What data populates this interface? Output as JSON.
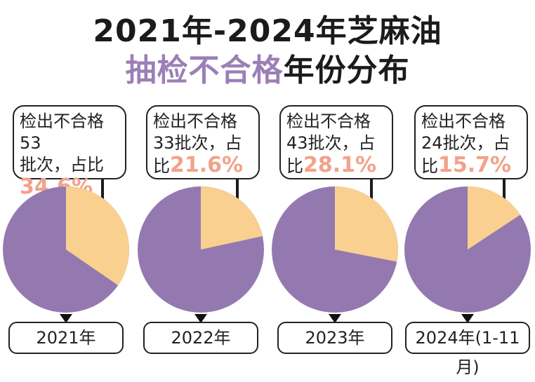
{
  "title": {
    "line1": "2021年-2024年芝麻油",
    "line2_highlight": "抽检不合格",
    "line2_rest": "年份分布"
  },
  "colors": {
    "failed": "#f9d08f",
    "rest": "#9479b0",
    "percent_text": "#f3a18a",
    "title_highlight": "#9b7fb6"
  },
  "chart_data": {
    "type": "pie",
    "categories": [
      "2021年",
      "2022年",
      "2023年",
      "2024年(1-11月)"
    ],
    "series": [
      {
        "year": "2021年",
        "batches": 53,
        "percent": 34.6,
        "text_a": "检出不合格53",
        "text_b": "批次，占比",
        "text_c": "",
        "pct_label": "34.6%"
      },
      {
        "year": "2022年",
        "batches": 33,
        "percent": 21.6,
        "text_a": "检出不合格",
        "text_b": "33批次，占",
        "text_c": "比",
        "pct_label": "21.6%"
      },
      {
        "year": "2023年",
        "batches": 43,
        "percent": 28.1,
        "text_a": "检出不合格",
        "text_b": "43批次，占",
        "text_c": "比",
        "pct_label": "28.1%"
      },
      {
        "year": "2024年(1-11月)",
        "batches": 24,
        "percent": 15.7,
        "text_a": "检出不合格",
        "text_b": "24批次，占",
        "text_c": "比",
        "pct_label": "15.7%"
      }
    ]
  }
}
